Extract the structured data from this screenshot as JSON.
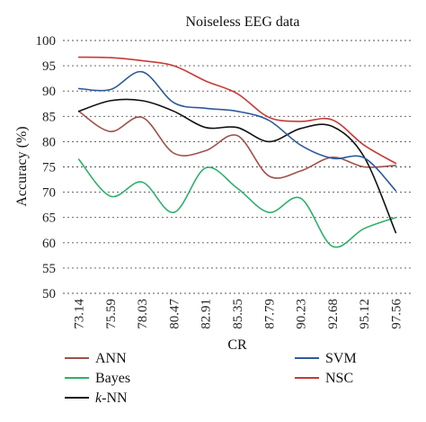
{
  "chart_data": {
    "type": "line",
    "title": "Noiseless EEG data",
    "xlabel": "CR",
    "ylabel": "Accuracy (%)",
    "ylim": [
      50,
      100
    ],
    "yticks": [
      "50",
      "55",
      "60",
      "65",
      "70",
      "75",
      "80",
      "85",
      "90",
      "95",
      "100"
    ],
    "categories": [
      "73.14",
      "75.59",
      "78.03",
      "80.47",
      "82.91",
      "85.35",
      "87.79",
      "90.23",
      "92.68",
      "95.12",
      "97.56"
    ],
    "grid": true,
    "legend_position": "bottom",
    "series": [
      {
        "name": "ANN",
        "color": "#a0524b",
        "values": [
          86.0,
          82.0,
          84.8,
          77.7,
          78.2,
          81.2,
          73.2,
          74.2,
          76.9,
          75.0,
          75.3
        ]
      },
      {
        "name": "Bayes",
        "color": "#2fb06b",
        "values": [
          76.5,
          69.2,
          72.0,
          66.0,
          74.8,
          70.8,
          66.0,
          68.8,
          59.3,
          62.8,
          65.0
        ]
      },
      {
        "name": "k-NN",
        "color": "#111111",
        "values": [
          86.0,
          88.1,
          88.1,
          86.0,
          82.8,
          82.8,
          80.0,
          82.6,
          83.0,
          77.0,
          62.0
        ]
      },
      {
        "name": "SVM",
        "color": "#2e5b9a",
        "values": [
          90.5,
          90.3,
          93.8,
          87.7,
          86.6,
          86.0,
          84.2,
          79.3,
          76.7,
          76.8,
          70.3
        ]
      },
      {
        "name": "NSC",
        "color": "#c83a36",
        "values": [
          96.7,
          96.6,
          96.0,
          95.0,
          92.0,
          89.5,
          84.8,
          84.0,
          84.3,
          79.3,
          75.7
        ]
      }
    ]
  }
}
